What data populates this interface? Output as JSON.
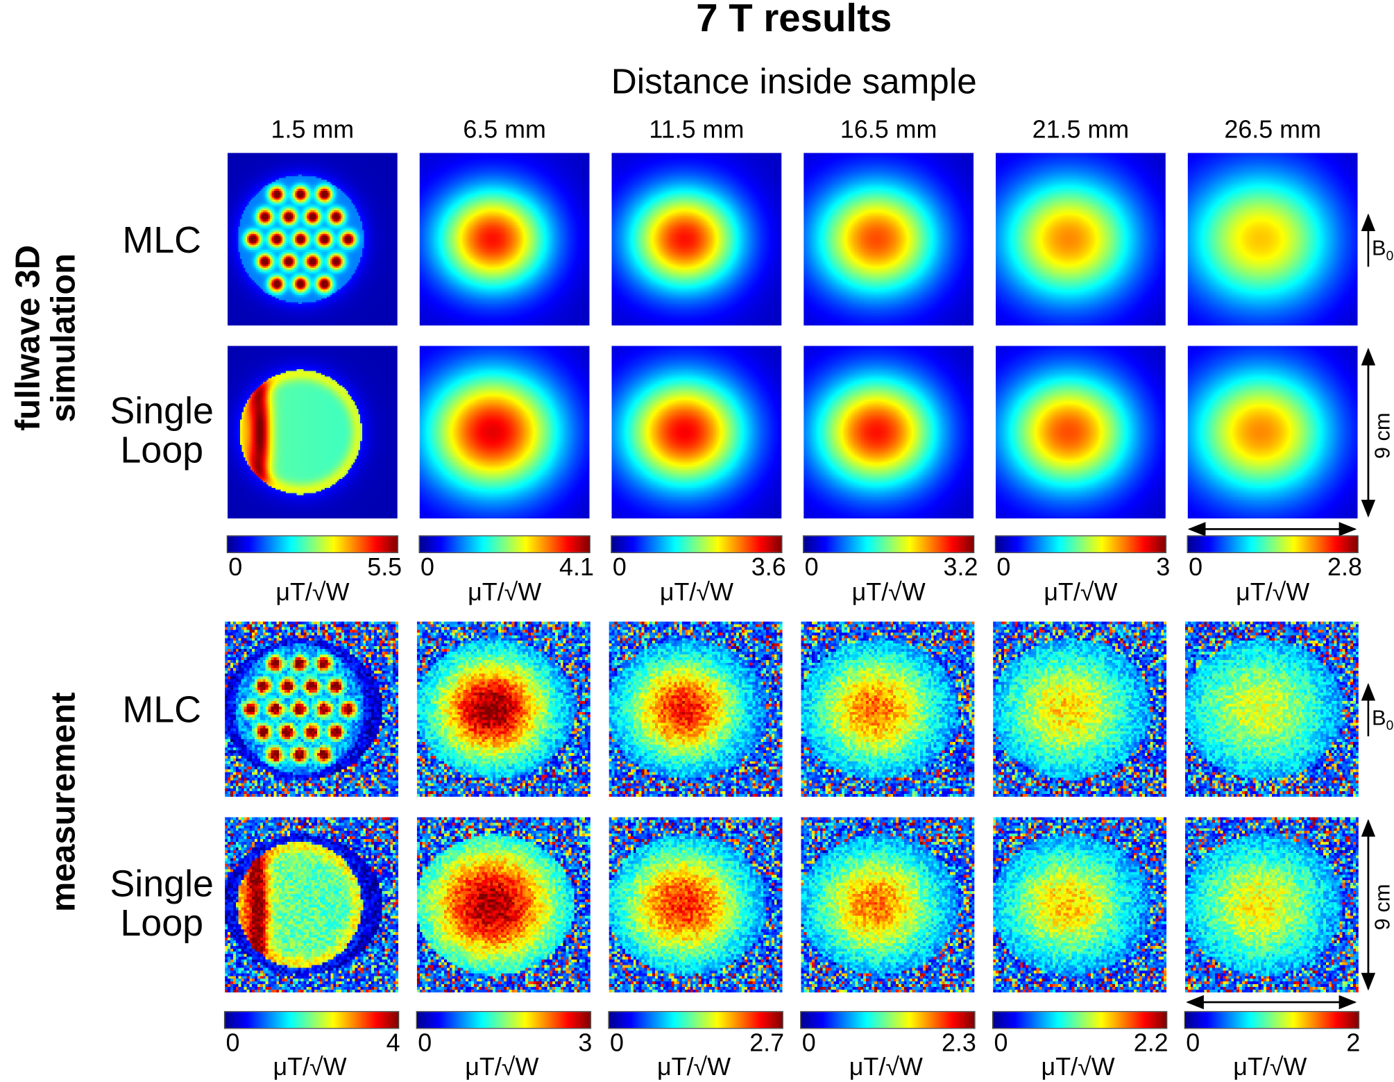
{
  "title": "7 T results",
  "subtitle": "Distance inside sample",
  "columns": [
    "1.5 mm",
    "6.5 mm",
    "11.5 mm",
    "16.5 mm",
    "21.5 mm",
    "26.5 mm"
  ],
  "groups": {
    "simulation_line1": "fullwave 3D",
    "simulation_line2": "simulation",
    "measurement": "measurement"
  },
  "rows": {
    "mlc": "MLC",
    "loop_line1": "Single",
    "loop_line2": "Loop"
  },
  "annotations": {
    "b0": "B",
    "b0_sub": "0",
    "scale": "9 cm"
  },
  "unit": "μT/√W",
  "chart_data": [
    {
      "type": "heatmap",
      "group": "fullwave 3D simulation",
      "title": "1.5 mm",
      "rows": [
        "MLC",
        "Single Loop"
      ],
      "colormap": "jet",
      "clim": [
        0,
        5.5
      ],
      "colorbar_label": "μT/√W"
    },
    {
      "type": "heatmap",
      "group": "fullwave 3D simulation",
      "title": "6.5 mm",
      "rows": [
        "MLC",
        "Single Loop"
      ],
      "colormap": "jet",
      "clim": [
        0,
        4.1
      ],
      "colorbar_label": "μT/√W"
    },
    {
      "type": "heatmap",
      "group": "fullwave 3D simulation",
      "title": "11.5 mm",
      "rows": [
        "MLC",
        "Single Loop"
      ],
      "colormap": "jet",
      "clim": [
        0,
        3.6
      ],
      "colorbar_label": "μT/√W"
    },
    {
      "type": "heatmap",
      "group": "fullwave 3D simulation",
      "title": "16.5 mm",
      "rows": [
        "MLC",
        "Single Loop"
      ],
      "colormap": "jet",
      "clim": [
        0,
        3.2
      ],
      "colorbar_label": "μT/√W"
    },
    {
      "type": "heatmap",
      "group": "fullwave 3D simulation",
      "title": "21.5 mm",
      "rows": [
        "MLC",
        "Single Loop"
      ],
      "colormap": "jet",
      "clim": [
        0,
        3
      ],
      "colorbar_label": "μT/√W"
    },
    {
      "type": "heatmap",
      "group": "fullwave 3D simulation",
      "title": "26.5 mm",
      "rows": [
        "MLC",
        "Single Loop"
      ],
      "colormap": "jet",
      "clim": [
        0,
        2.8
      ],
      "colorbar_label": "μT/√W"
    },
    {
      "type": "heatmap",
      "group": "measurement",
      "title": "1.5 mm",
      "rows": [
        "MLC",
        "Single Loop"
      ],
      "colormap": "jet",
      "clim": [
        0,
        4
      ],
      "colorbar_label": "μT/√W"
    },
    {
      "type": "heatmap",
      "group": "measurement",
      "title": "6.5 mm",
      "rows": [
        "MLC",
        "Single Loop"
      ],
      "colormap": "jet",
      "clim": [
        0,
        3
      ],
      "colorbar_label": "μT/√W"
    },
    {
      "type": "heatmap",
      "group": "measurement",
      "title": "11.5 mm",
      "rows": [
        "MLC",
        "Single Loop"
      ],
      "colormap": "jet",
      "clim": [
        0,
        2.7
      ],
      "colorbar_label": "μT/√W"
    },
    {
      "type": "heatmap",
      "group": "measurement",
      "title": "16.5 mm",
      "rows": [
        "MLC",
        "Single Loop"
      ],
      "colormap": "jet",
      "clim": [
        0,
        2.3
      ],
      "colorbar_label": "μT/√W"
    },
    {
      "type": "heatmap",
      "group": "measurement",
      "title": "21.5 mm",
      "rows": [
        "MLC",
        "Single Loop"
      ],
      "colormap": "jet",
      "clim": [
        0,
        2.2
      ],
      "colorbar_label": "μT/√W"
    },
    {
      "type": "heatmap",
      "group": "measurement",
      "title": "26.5 mm",
      "rows": [
        "MLC",
        "Single Loop"
      ],
      "colormap": "jet",
      "clim": [
        0,
        2
      ],
      "colorbar_label": "μT/√W"
    }
  ]
}
